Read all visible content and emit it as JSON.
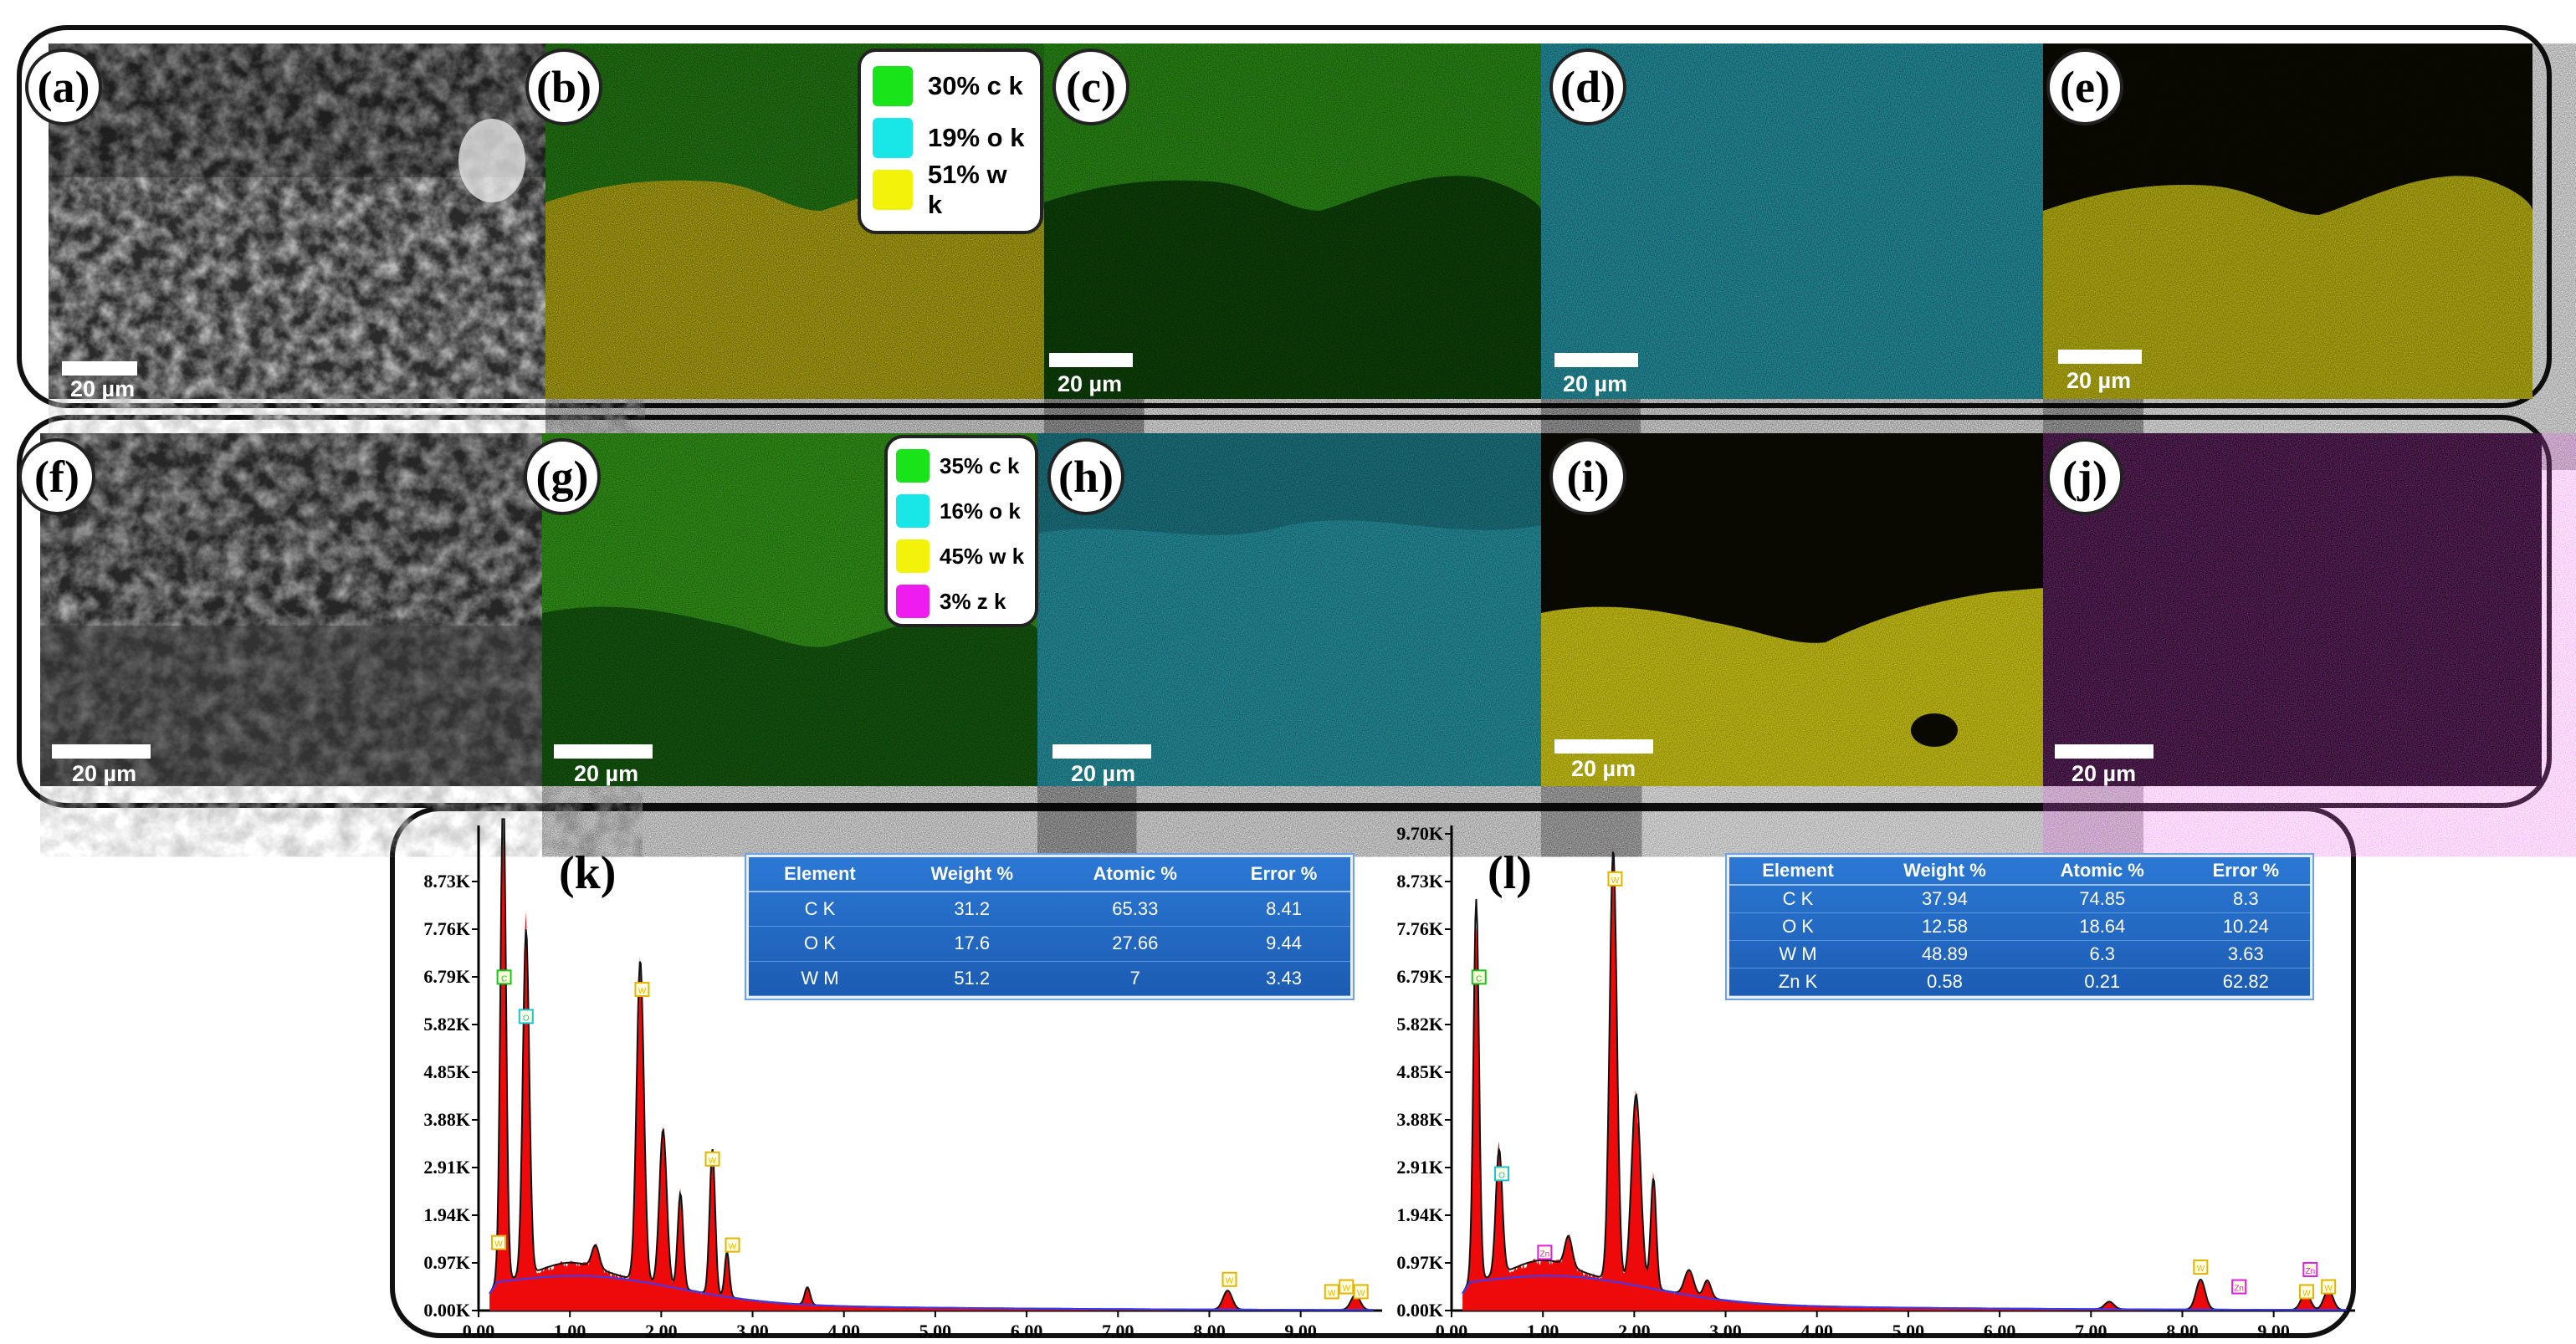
{
  "panels": {
    "a": {
      "label": "(a)",
      "scale": "20 µm"
    },
    "b": {
      "label": "(b)"
    },
    "c": {
      "label": "(c)",
      "scale": "20 µm"
    },
    "d": {
      "label": "(d)",
      "scale": "20 µm"
    },
    "e": {
      "label": "(e)",
      "scale": "20 µm"
    },
    "f": {
      "label": "(f)",
      "scale": "20 µm"
    },
    "g": {
      "label": "(g)",
      "scale": "20 µm"
    },
    "h": {
      "label": "(h)",
      "scale": "20 µm"
    },
    "i": {
      "label": "(i)",
      "scale": "20 µm"
    },
    "j": {
      "label": "(j)",
      "scale": "20 µm"
    }
  },
  "legend_top": [
    {
      "text": "30% c k",
      "color": "#19e419"
    },
    {
      "text": "19% o k",
      "color": "#19e6e6"
    },
    {
      "text": "51% w k",
      "color": "#f2f20a"
    }
  ],
  "legend_bottom": [
    {
      "text": "35% c k",
      "color": "#19e419"
    },
    {
      "text": "16% o k",
      "color": "#19e6e6"
    },
    {
      "text": "45% w k",
      "color": "#f2f20a"
    },
    {
      "text": "3% z k",
      "color": "#ee1cee"
    }
  ],
  "colors": {
    "c_map": "#2a9a12",
    "o_map": "#2ab3c4",
    "w_map": "#d4cc12",
    "z_map": "#7a1c78",
    "spectrum_fill": "#ee0a0a",
    "table_bg": "#1f63bf"
  },
  "chart_data": [
    {
      "type": "area",
      "title": "(k)",
      "xlabel": "",
      "ylabel": "",
      "xlim": [
        0,
        9.8
      ],
      "ylim": [
        0,
        9.7
      ],
      "x_ticks": [
        "0.00",
        "1.00",
        "2.00",
        "3.00",
        "4.00",
        "5.00",
        "6.00",
        "7.00",
        "8.00",
        "9.00"
      ],
      "y_ticks": [
        "0.00K",
        "0.97K",
        "1.94K",
        "2.91K",
        "3.88K",
        "4.85K",
        "5.82K",
        "6.79K",
        "7.76K",
        "8.73K"
      ],
      "units": "counts (K) vs keV",
      "peaks": [
        {
          "x": 0.27,
          "y": 9.9,
          "width": 0.03
        },
        {
          "x": 0.52,
          "y": 6.9,
          "width": 0.035
        },
        {
          "x": 1.0,
          "y": 0.25,
          "width": 0.3
        },
        {
          "x": 1.28,
          "y": 0.45,
          "width": 0.04
        },
        {
          "x": 1.77,
          "y": 6.4,
          "width": 0.04
        },
        {
          "x": 2.02,
          "y": 3.1,
          "width": 0.04
        },
        {
          "x": 2.21,
          "y": 1.9,
          "width": 0.03
        },
        {
          "x": 2.56,
          "y": 2.9,
          "width": 0.03
        },
        {
          "x": 2.72,
          "y": 0.9,
          "width": 0.025
        },
        {
          "x": 3.6,
          "y": 0.35,
          "width": 0.03
        },
        {
          "x": 8.2,
          "y": 0.38,
          "width": 0.05
        },
        {
          "x": 9.6,
          "y": 0.3,
          "width": 0.05
        }
      ],
      "background": 0.5,
      "markers": [
        {
          "x": 0.28,
          "y": 6.75,
          "label": "C",
          "color": "#19c419"
        },
        {
          "x": 0.52,
          "y": 5.95,
          "label": "O",
          "color": "#19c4d4"
        },
        {
          "x": 0.22,
          "y": 1.35,
          "label": "W",
          "color": "#e6b400"
        },
        {
          "x": 1.79,
          "y": 6.5,
          "label": "W",
          "color": "#e6b400"
        },
        {
          "x": 2.56,
          "y": 3.05,
          "label": "W",
          "color": "#e6b400"
        },
        {
          "x": 2.78,
          "y": 1.3,
          "label": "W",
          "color": "#e6b400"
        },
        {
          "x": 8.22,
          "y": 0.6,
          "label": "W",
          "color": "#e6b400"
        },
        {
          "x": 9.34,
          "y": 0.35,
          "label": "W",
          "color": "#e6b400"
        },
        {
          "x": 9.5,
          "y": 0.45,
          "label": "W",
          "color": "#e6b400"
        },
        {
          "x": 9.66,
          "y": 0.35,
          "label": "W",
          "color": "#e6b400"
        }
      ],
      "table": {
        "headers": [
          "Element",
          "Weight %",
          "Atomic %",
          "Error %"
        ],
        "rows": [
          [
            "C  K",
            "31.2",
            "65.33",
            "8.41"
          ],
          [
            "O  K",
            "17.6",
            "27.66",
            "9.44"
          ],
          [
            "W  M",
            "51.2",
            "7",
            "3.43"
          ]
        ]
      }
    },
    {
      "type": "area",
      "title": "(l)",
      "xlabel": "",
      "ylabel": "",
      "xlim": [
        0,
        9.8
      ],
      "ylim": [
        0,
        9.7
      ],
      "x_ticks": [
        "0.00",
        "1.00",
        "2.00",
        "3.00",
        "4.00",
        "5.00",
        "6.00",
        "7.00",
        "8.00",
        "9.00"
      ],
      "y_ticks": [
        "0.00K",
        "0.97K",
        "1.94K",
        "2.91K",
        "3.88K",
        "4.85K",
        "5.82K",
        "6.79K",
        "7.76K",
        "8.73K",
        "9.70K"
      ],
      "units": "counts (K) vs keV",
      "peaks": [
        {
          "x": 0.27,
          "y": 7.6,
          "width": 0.03
        },
        {
          "x": 0.52,
          "y": 2.5,
          "width": 0.035
        },
        {
          "x": 1.0,
          "y": 0.3,
          "width": 0.3
        },
        {
          "x": 1.28,
          "y": 0.6,
          "width": 0.04
        },
        {
          "x": 1.77,
          "y": 8.6,
          "width": 0.04
        },
        {
          "x": 2.02,
          "y": 3.8,
          "width": 0.05
        },
        {
          "x": 2.21,
          "y": 2.2,
          "width": 0.03
        },
        {
          "x": 2.6,
          "y": 0.5,
          "width": 0.05
        },
        {
          "x": 2.8,
          "y": 0.35,
          "width": 0.04
        },
        {
          "x": 7.2,
          "y": 0.15,
          "width": 0.05
        },
        {
          "x": 8.2,
          "y": 0.6,
          "width": 0.05
        },
        {
          "x": 9.35,
          "y": 0.35,
          "width": 0.05
        },
        {
          "x": 9.6,
          "y": 0.4,
          "width": 0.05
        }
      ],
      "background": 0.5,
      "markers": [
        {
          "x": 0.3,
          "y": 6.75,
          "label": "C",
          "color": "#19c419"
        },
        {
          "x": 0.55,
          "y": 2.75,
          "label": "O",
          "color": "#19c4d4"
        },
        {
          "x": 1.02,
          "y": 1.15,
          "label": "Zn",
          "color": "#e01ee0"
        },
        {
          "x": 1.79,
          "y": 8.75,
          "label": "W",
          "color": "#e6b400"
        },
        {
          "x": 8.2,
          "y": 0.85,
          "label": "W",
          "color": "#e6b400"
        },
        {
          "x": 8.62,
          "y": 0.45,
          "label": "Zn",
          "color": "#e01ee0"
        },
        {
          "x": 9.4,
          "y": 0.8,
          "label": "Zn",
          "color": "#e01ee0"
        },
        {
          "x": 9.36,
          "y": 0.35,
          "label": "W",
          "color": "#e6b400"
        },
        {
          "x": 9.6,
          "y": 0.45,
          "label": "W",
          "color": "#e6b400"
        }
      ],
      "table": {
        "headers": [
          "Element",
          "Weight %",
          "Atomic %",
          "Error %"
        ],
        "rows": [
          [
            "C  K",
            "37.94",
            "74.85",
            "8.3"
          ],
          [
            "O  K",
            "12.58",
            "18.64",
            "10.24"
          ],
          [
            "W  M",
            "48.89",
            "6.3",
            "3.63"
          ],
          [
            "Zn K",
            "0.58",
            "0.21",
            "62.82"
          ]
        ]
      }
    }
  ]
}
